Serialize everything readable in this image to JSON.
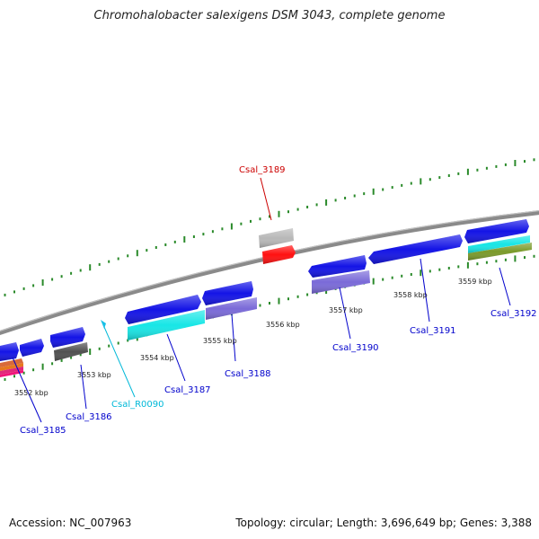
{
  "title": "Chromohalobacter salexigens DSM 3043, complete genome",
  "footer": {
    "accession": "Accession: NC_007963",
    "summary": "Topology: circular; Length: 3,696,649 bp; Genes: 3,388"
  },
  "colors": {
    "backbone": "#8a8a8a",
    "ticks": "#2a8a2a",
    "gene_blue": "#1414e6",
    "gene_cyan": "#18e6e6",
    "gene_lavender": "#7a6ad8",
    "gene_gray": "#b8b8b8",
    "gene_red": "#ff1010",
    "gene_olive": "#7a9a2a",
    "gene_dark": "#505050",
    "label_blue": "#0000cc",
    "label_red": "#cc0000",
    "label_cyan": "#00b8d8"
  },
  "scale_labels": [
    "3552 kbp",
    "3553 kbp",
    "3554 kbp",
    "3555 kbp",
    "3556 kbp",
    "3557 kbp",
    "3558 kbp",
    "3559 kbp"
  ],
  "gene_labels": {
    "csal_3185": "Csal_3185",
    "csal_3186": "Csal_3186",
    "csal_r0090": "Csal_R0090",
    "csal_3187": "Csal_3187",
    "csal_3188": "Csal_3188",
    "csal_3189": "Csal_3189",
    "csal_3190": "Csal_3190",
    "csal_3191": "Csal_3191",
    "csal_3192": "Csal_3192"
  }
}
